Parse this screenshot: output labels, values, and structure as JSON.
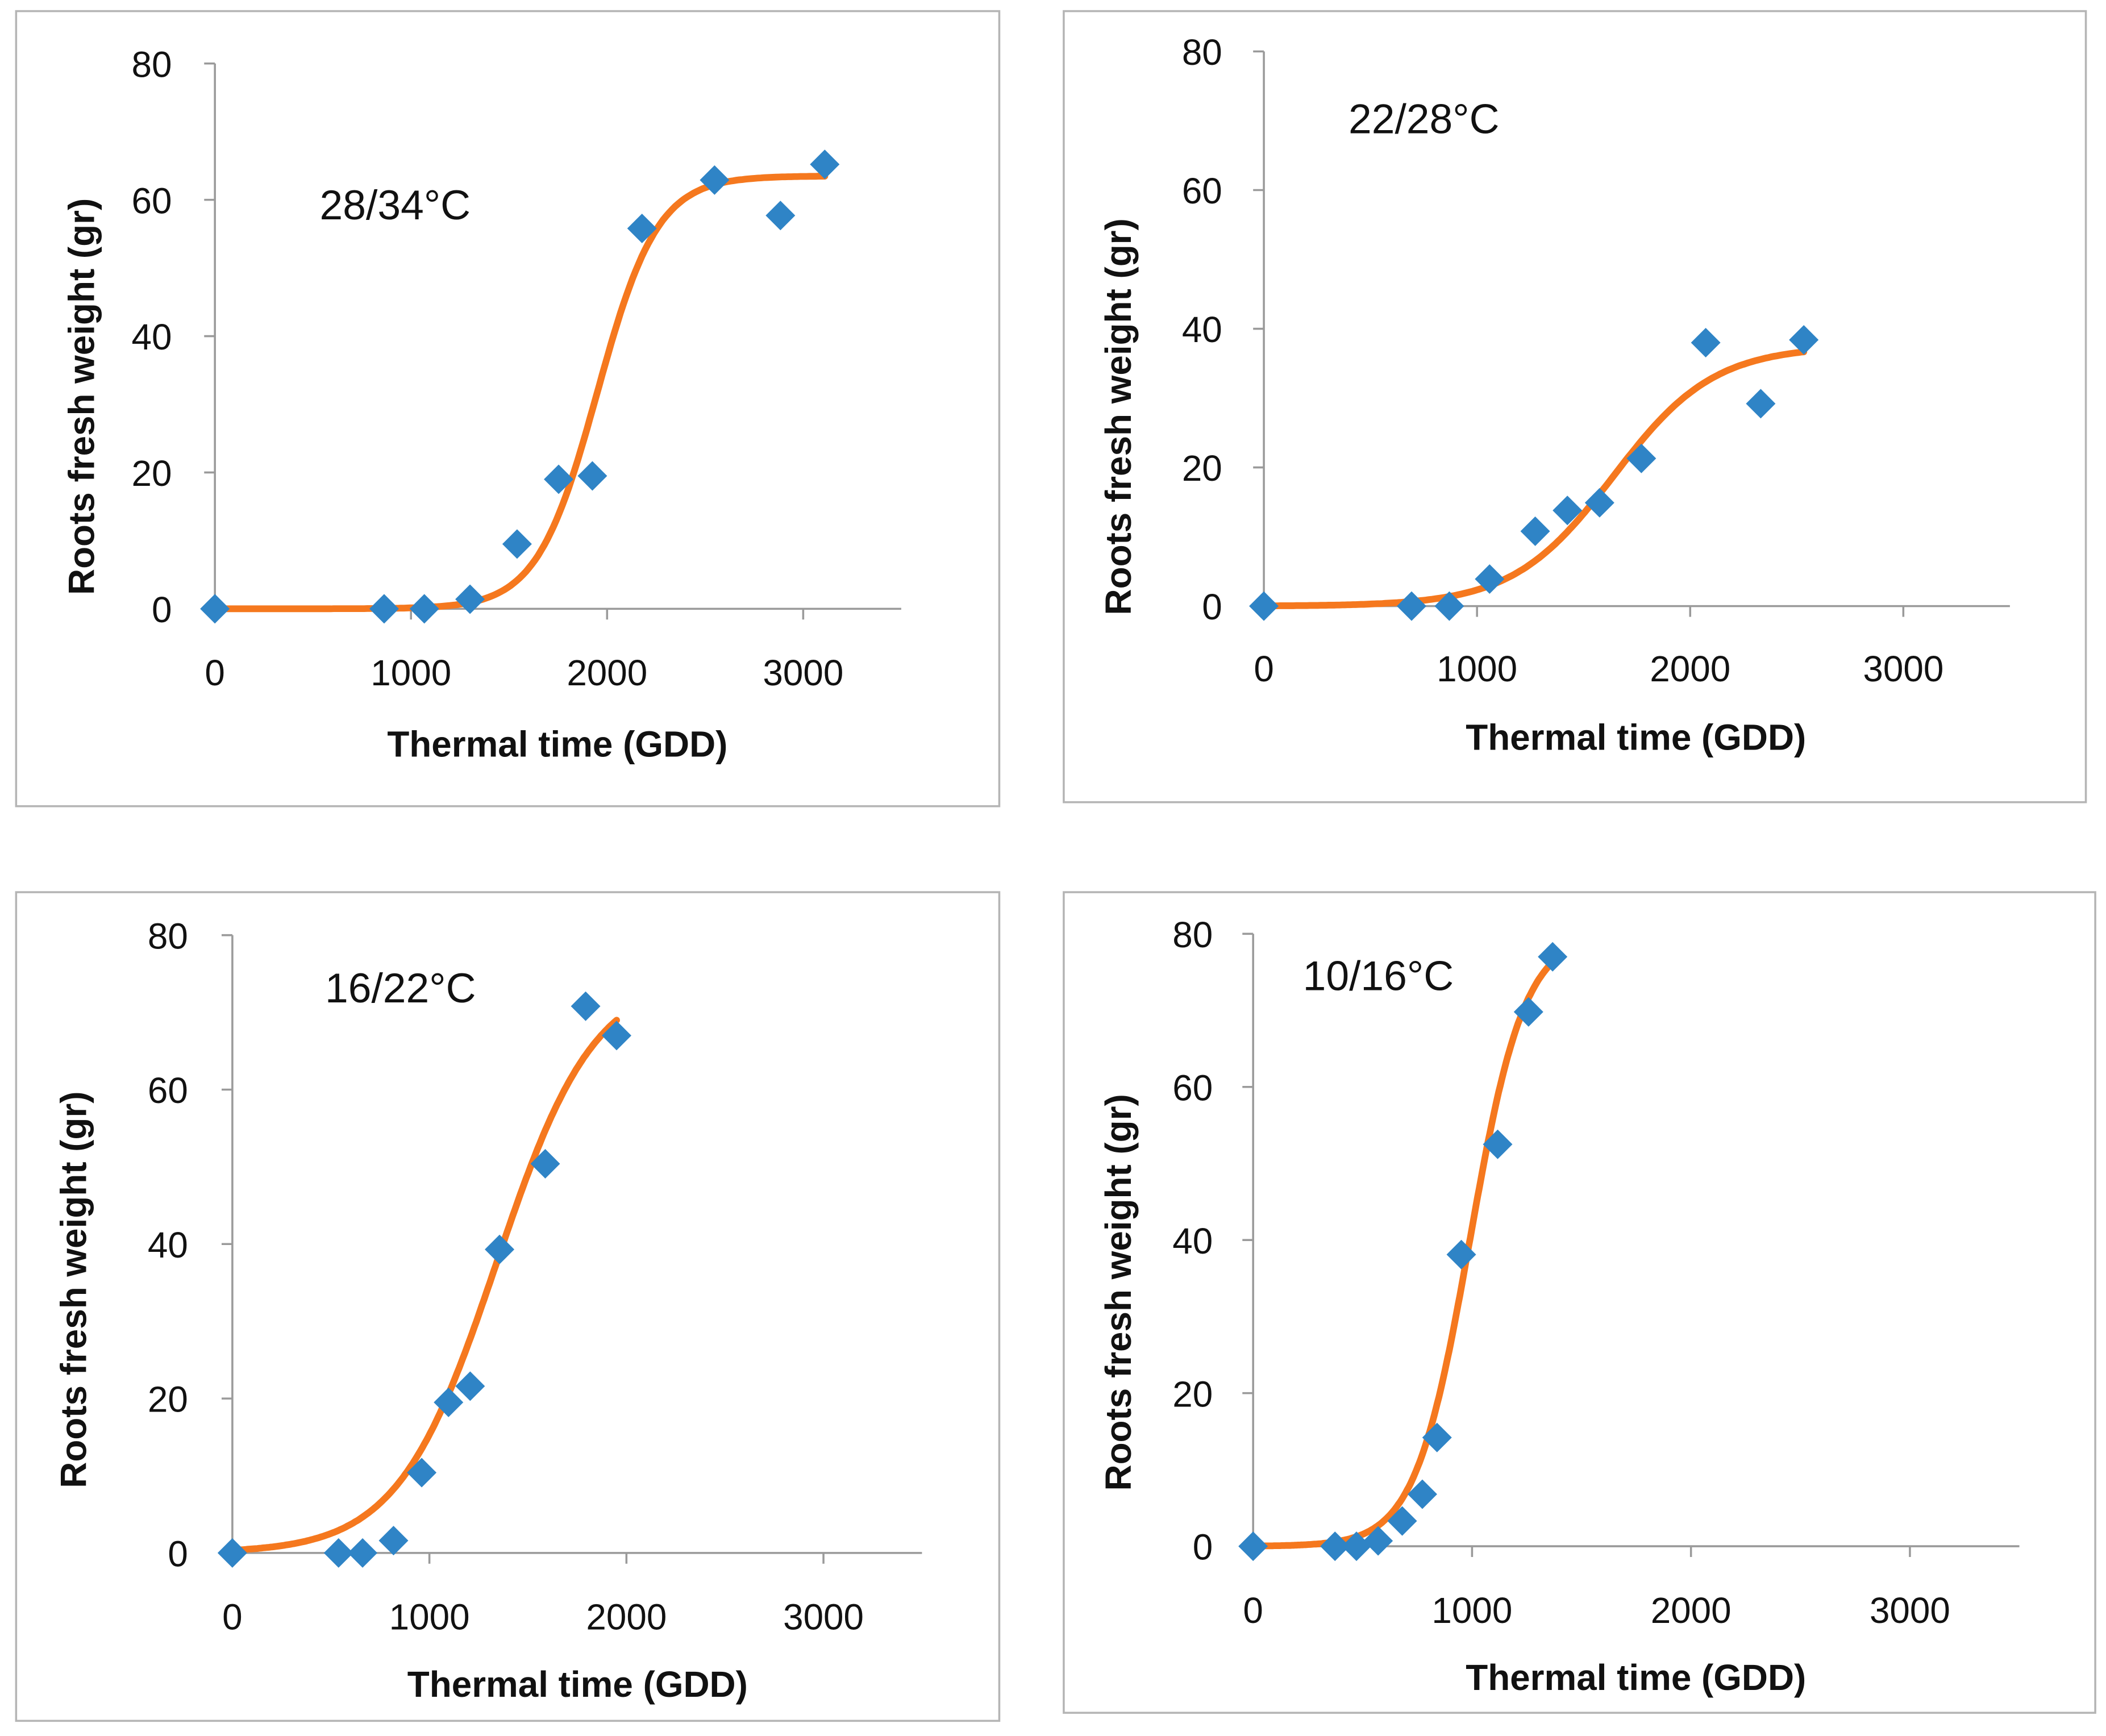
{
  "colors": {
    "marker": "#2F84C6",
    "curve": "#F5781E",
    "axis": "#9a9a9a",
    "frame": "#b5b5b5"
  },
  "chart_data": [
    {
      "type": "scatter",
      "annotation": "28/34°C",
      "xlabel": "Thermal time (GDD)",
      "ylabel": "Roots fresh weight (gr)",
      "xlim": [
        0,
        3500
      ],
      "ylim": [
        0,
        80
      ],
      "xticks": [
        0,
        1000,
        2000,
        3000
      ],
      "yticks": [
        0,
        20,
        40,
        60,
        80
      ],
      "points": [
        [
          0,
          0
        ],
        [
          863,
          0
        ],
        [
          1068,
          0
        ],
        [
          1301,
          1.4
        ],
        [
          1541,
          9.5
        ],
        [
          1753,
          19
        ],
        [
          1925,
          19.5
        ],
        [
          2178,
          55.8
        ],
        [
          2548,
          62.9
        ],
        [
          2884,
          57.7
        ],
        [
          3110,
          65.2
        ]
      ],
      "fit": {
        "model": "logistic",
        "K": 63.5,
        "x0": 1950,
        "s": 154,
        "xrange": [
          0,
          3110
        ]
      }
    },
    {
      "type": "scatter",
      "annotation": "22/28°C",
      "xlabel": "Thermal time (GDD)",
      "ylabel": "Roots fresh weight  (gr)",
      "xlim": [
        0,
        3500
      ],
      "ylim": [
        0,
        80
      ],
      "xticks": [
        0,
        1000,
        2000,
        3000
      ],
      "yticks": [
        0,
        20,
        40,
        60,
        80
      ],
      "points": [
        [
          0,
          0
        ],
        [
          693,
          0
        ],
        [
          870,
          0
        ],
        [
          1059,
          3.9
        ],
        [
          1273,
          10.8
        ],
        [
          1424,
          13.8
        ],
        [
          1575,
          14.9
        ],
        [
          1771,
          21.3
        ],
        [
          2073,
          38
        ],
        [
          2331,
          29.2
        ],
        [
          2533,
          38.4
        ]
      ],
      "fit": {
        "model": "logistic",
        "K": 37.5,
        "x0": 1640,
        "s": 236,
        "xrange": [
          0,
          2533
        ]
      }
    },
    {
      "type": "scatter",
      "annotation": "16/22°C",
      "xlabel": "Thermal time (GDD)",
      "ylabel": "Roots fresh weight  (gr)",
      "xlim": [
        0,
        3500
      ],
      "ylim": [
        0,
        80
      ],
      "xticks": [
        0,
        1000,
        2000,
        3000
      ],
      "yticks": [
        0,
        20,
        40,
        60,
        80
      ],
      "points": [
        [
          0,
          0
        ],
        [
          539,
          0
        ],
        [
          661,
          0
        ],
        [
          818,
          1.6
        ],
        [
          961,
          10.4
        ],
        [
          1097,
          19.5
        ],
        [
          1207,
          21.6
        ],
        [
          1356,
          39.3
        ],
        [
          1588,
          50.4
        ],
        [
          1793,
          70.8
        ],
        [
          1950,
          67
        ]
      ],
      "fit": {
        "model": "logistic",
        "K": 75,
        "x0": 1340,
        "s": 250,
        "xrange": [
          0,
          1950
        ]
      }
    },
    {
      "type": "scatter",
      "annotation": "10/16°C",
      "xlabel": "Thermal time (GDD)",
      "ylabel": "Roots fresh weight  (gr)",
      "xlim": [
        0,
        3500
      ],
      "ylim": [
        0,
        80
      ],
      "xticks": [
        0,
        1000,
        2000,
        3000
      ],
      "yticks": [
        0,
        20,
        40,
        60,
        80
      ],
      "points": [
        [
          0,
          0
        ],
        [
          374,
          0
        ],
        [
          472,
          0
        ],
        [
          571,
          0.7
        ],
        [
          681,
          3.3
        ],
        [
          773,
          6.8
        ],
        [
          840,
          14.2
        ],
        [
          951,
          38.1
        ],
        [
          1117,
          52.5
        ],
        [
          1258,
          69.8
        ],
        [
          1368,
          77
        ]
      ],
      "fit": {
        "model": "logistic",
        "K": 80,
        "x0": 990,
        "s": 125,
        "xrange": [
          0,
          1368
        ]
      }
    }
  ]
}
